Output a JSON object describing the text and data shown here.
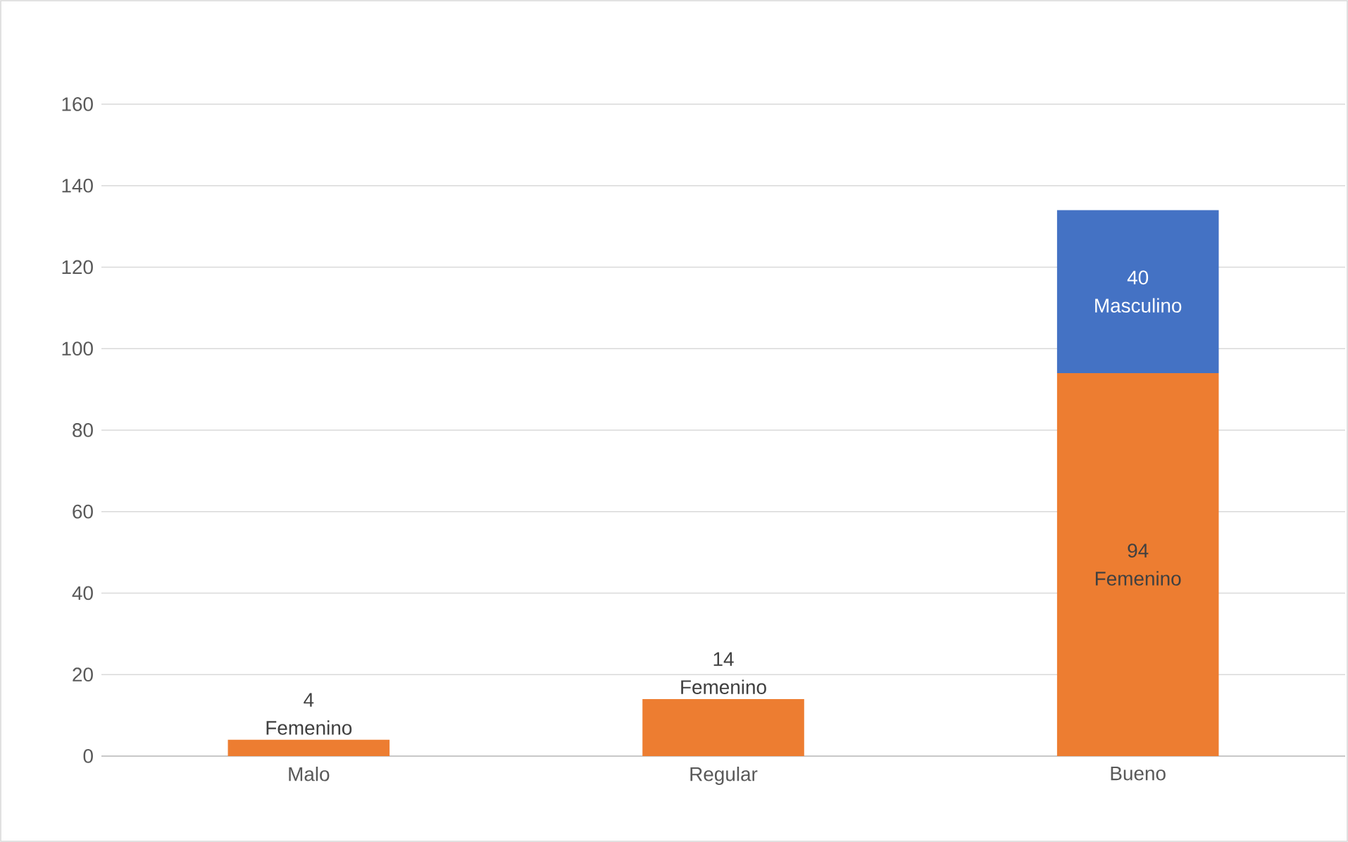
{
  "chart_data": {
    "type": "bar",
    "stacked": true,
    "categories": [
      "Malo",
      "Regular",
      "Bueno"
    ],
    "series": [
      {
        "name": "Femenino",
        "color": "#ed7d31",
        "values": [
          4,
          14,
          94
        ]
      },
      {
        "name": "Masculino",
        "color": "#4472c4",
        "values": [
          null,
          null,
          40
        ]
      }
    ],
    "ylim": [
      0,
      160
    ],
    "yticks": [
      0,
      20,
      40,
      60,
      80,
      100,
      120,
      140,
      160
    ],
    "grid": "y",
    "data_labels": true
  }
}
